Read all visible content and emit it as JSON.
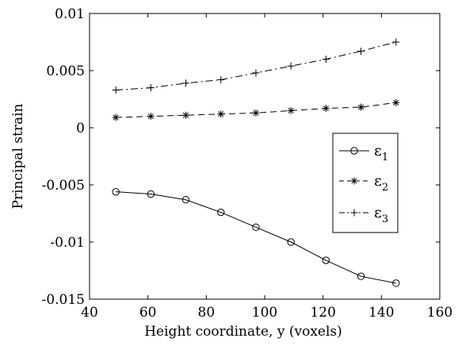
{
  "chart_data": {
    "type": "line",
    "xlabel": "Height coordinate, y (voxels)",
    "ylabel": "Principal strain",
    "xlim": [
      40,
      160
    ],
    "ylim": [
      -0.015,
      0.01
    ],
    "xticks": [
      40,
      60,
      80,
      100,
      120,
      140,
      160
    ],
    "yticks": [
      -0.015,
      -0.01,
      -0.005,
      0,
      0.005,
      0.01
    ],
    "xtick_labels": [
      "40",
      "60",
      "80",
      "100",
      "120",
      "140",
      "160"
    ],
    "ytick_labels": [
      "-0.015",
      "-0.01",
      "-0.005",
      "0",
      "0.005",
      "0.01"
    ],
    "grid": false,
    "legend_position": "right",
    "x": [
      49,
      61,
      73,
      85,
      97,
      109,
      121,
      133,
      145
    ],
    "series": [
      {
        "name": "ε",
        "subscript": "1",
        "line_style": "solid",
        "marker": "circle",
        "values": [
          -0.0056,
          -0.0058,
          -0.0063,
          -0.0074,
          -0.0087,
          -0.01,
          -0.0116,
          -0.013,
          -0.0136
        ]
      },
      {
        "name": "ε",
        "subscript": "2",
        "line_style": "dashed",
        "marker": "asterisk",
        "values": [
          0.0009,
          0.001,
          0.0011,
          0.0012,
          0.0013,
          0.0015,
          0.0017,
          0.0018,
          0.0022
        ]
      },
      {
        "name": "ε",
        "subscript": "3",
        "line_style": "dashdot",
        "marker": "plus",
        "values": [
          0.0033,
          0.0035,
          0.0039,
          0.0042,
          0.0048,
          0.0054,
          0.006,
          0.0067,
          0.0075
        ]
      }
    ]
  }
}
